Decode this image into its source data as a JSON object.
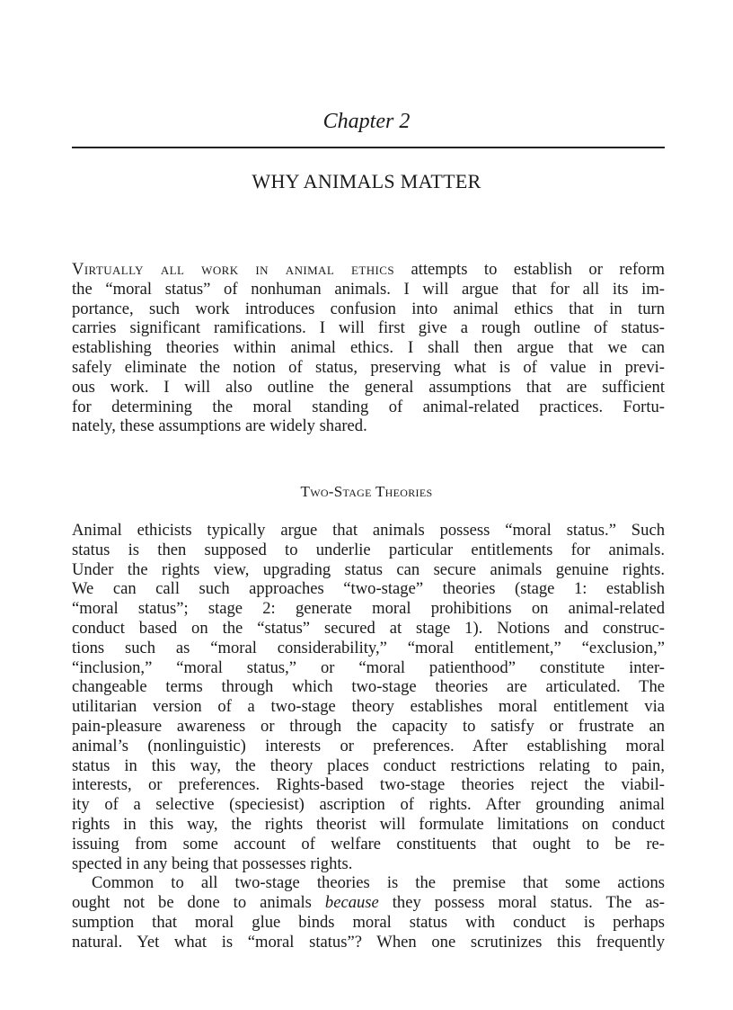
{
  "chapter_label": "Chapter 2",
  "chapter_title": "WHY ANIMALS MATTER",
  "intro": {
    "lead": "Virtually all work in animal ethics",
    "lines": [
      " attempts to establish or reform",
      "the “moral status” of nonhuman animals. I will argue that for all its im-",
      "portance, such work introduces confusion into animal ethics that in turn",
      "carries significant ramifications. I will first give a rough outline of status-",
      "establishing theories within animal ethics. I shall then argue that we can",
      "safely eliminate the notion of status, preserving what is of value in previ-",
      "ous work. I will also outline the general assumptions that are sufficient",
      "for determining the moral standing of animal-related practices. Fortu-",
      "nately, these assumptions are widely shared."
    ]
  },
  "section_heading": "Two-Stage Theories",
  "paragraph2": [
    "Animal ethicists typically argue that animals possess “moral status.” Such",
    "status is then supposed to underlie particular entitlements for animals.",
    "Under the rights view, upgrading status can secure animals genuine rights.",
    "We can call such approaches “two-stage” theories (stage 1: establish",
    "“moral status”; stage 2: generate moral prohibitions on animal-related",
    "conduct based on the “status” secured at stage 1). Notions and construc-",
    "tions such as “moral considerability,” “moral entitlement,” “exclusion,”",
    "“inclusion,” “moral status,” or “moral patienthood” constitute inter-",
    "changeable terms through which two-stage theories are articulated. The",
    "utilitarian version of a two-stage theory establishes moral entitlement via",
    "pain-pleasure awareness or through the capacity to satisfy or frustrate an",
    "animal’s (nonlinguistic) interests or preferences. After establishing moral",
    "status in this way, the theory places conduct restrictions relating to pain,",
    "interests, or preferences. Rights-based two-stage theories reject the viabil-",
    "ity of a selective (speciesist) ascription of rights. After grounding animal",
    "rights in this way, the rights theorist will formulate limitations on conduct",
    "issuing from some account of welfare constituents that ought to be re-",
    "spected in any being that possesses rights."
  ],
  "paragraph3": {
    "line1": "Common to all two-stage theories is the premise that some actions",
    "line2_pre": "ought not be done to animals ",
    "line2_em": "because",
    "line2_post": " they possess moral status. The as-",
    "line3": "sumption that moral glue binds moral status with conduct is perhaps",
    "line4": "natural. Yet what is “moral status”? When one scrutinizes this frequently"
  }
}
